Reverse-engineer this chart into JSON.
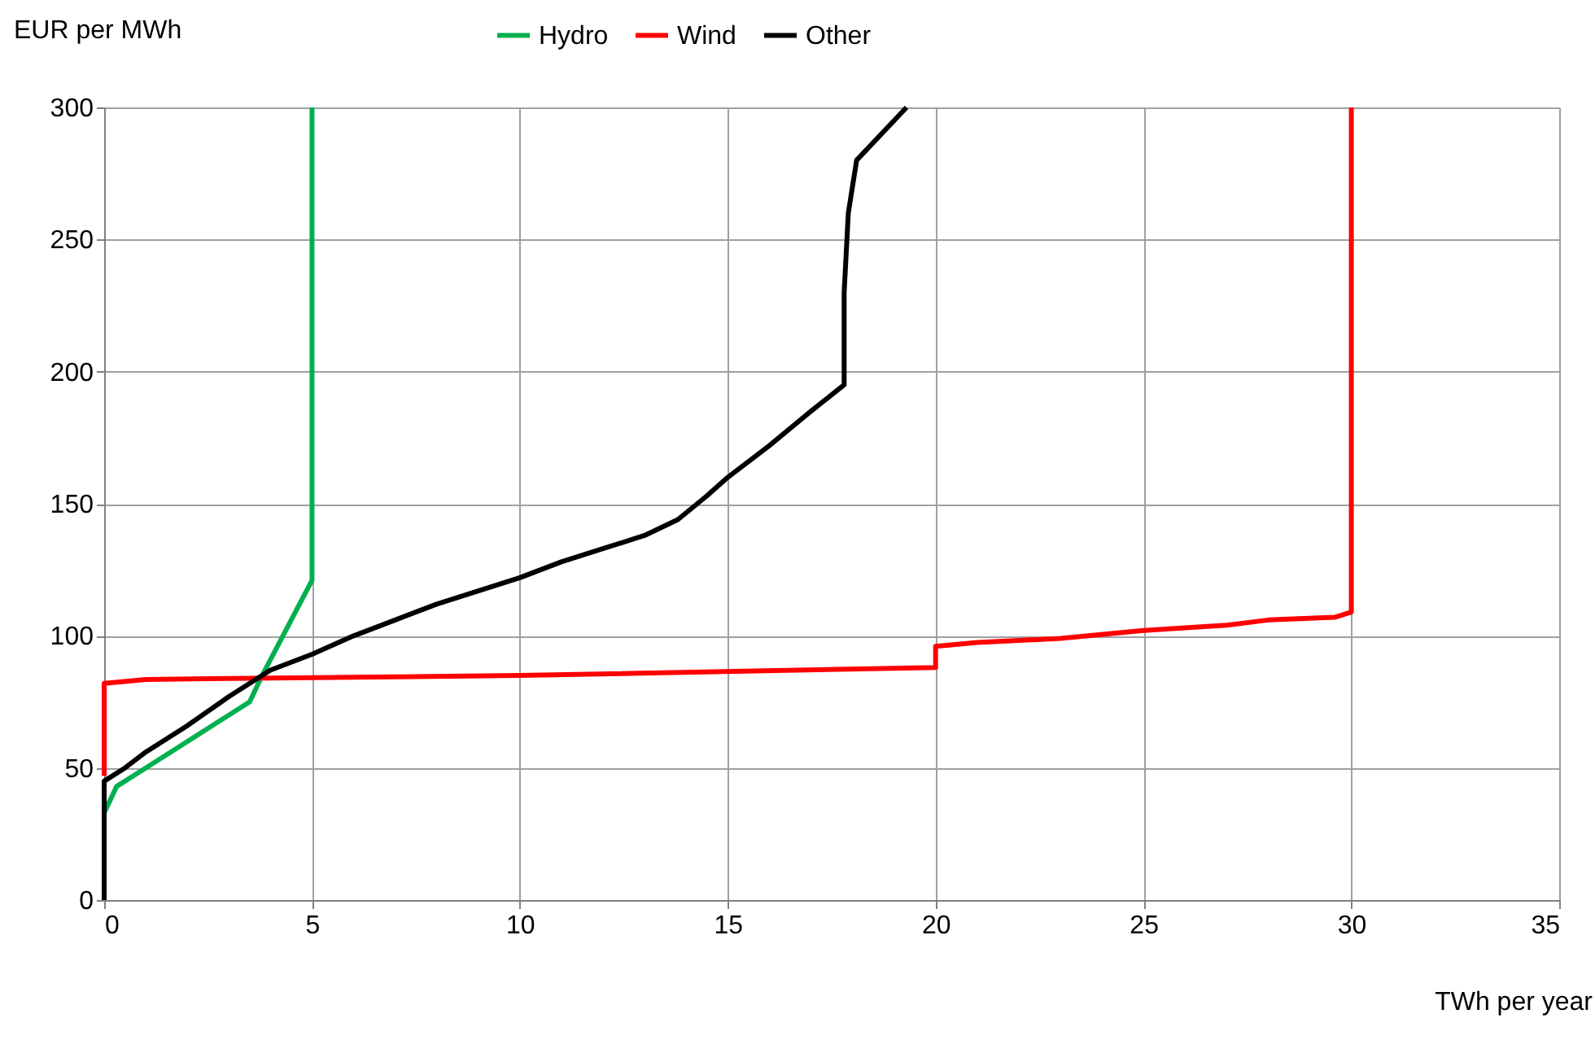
{
  "chart_data": {
    "type": "line",
    "xlabel": "TWh per year",
    "ylabel": "EUR per MWh",
    "xlim": [
      0,
      35
    ],
    "xticks": [
      0,
      5,
      10,
      15,
      20,
      25,
      30,
      35
    ],
    "ylim": [
      0,
      300
    ],
    "yticks": [
      0,
      50,
      100,
      150,
      200,
      250,
      300
    ],
    "grid": true,
    "legend": "top",
    "line_style": "solid",
    "marker": "none",
    "series": [
      {
        "name": "Hydro",
        "color": "#00b050",
        "x": [
          0,
          0.3,
          1,
          2,
          3,
          3.5,
          3.8,
          4.3,
          5,
          5
        ],
        "values": [
          33,
          43,
          50,
          60,
          70,
          75,
          85,
          100,
          121,
          300
        ]
      },
      {
        "name": "Wind",
        "color": "#ff0000",
        "x": [
          0,
          0,
          1,
          10,
          20,
          20,
          21,
          23,
          25,
          27,
          28,
          29.6,
          30,
          30
        ],
        "values": [
          47,
          82,
          83.5,
          85,
          88,
          96,
          97.5,
          99,
          102,
          104,
          106,
          107,
          109,
          300
        ]
      },
      {
        "name": "Other",
        "color": "#000000",
        "x": [
          0,
          0,
          0.5,
          1,
          2,
          3,
          4,
          5,
          6,
          7,
          8,
          9,
          10,
          11,
          12,
          13,
          13.8,
          14.5,
          15,
          16,
          17,
          17.8,
          17.8,
          17.9,
          18.1,
          19.3
        ],
        "values": [
          0,
          45,
          50,
          56,
          66,
          77,
          87,
          93,
          100,
          106,
          112,
          117,
          122,
          128,
          133,
          138,
          144,
          153,
          160,
          172,
          185,
          195,
          230,
          260,
          280,
          300
        ]
      }
    ]
  }
}
